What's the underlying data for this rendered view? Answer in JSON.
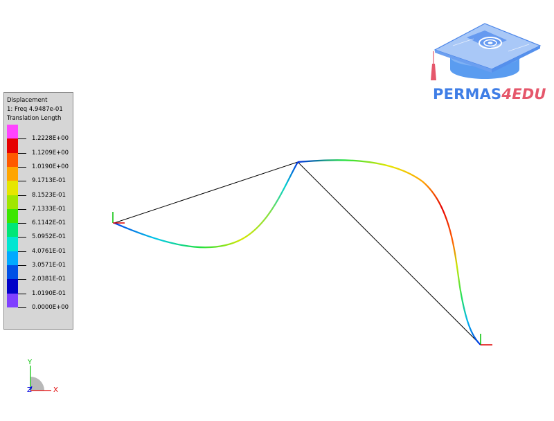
{
  "legend": {
    "title": "Displacement",
    "subtitle": "1: Freq 4.9487e-01",
    "quantity": "Translation Length",
    "ticks": [
      "1.2228E+00",
      "1.1209E+00",
      "1.0190E+00",
      "9.1713E-01",
      "8.1523E-01",
      "7.1333E-01",
      "6.1142E-01",
      "5.0952E-01",
      "4.0761E-01",
      "3.0571E-01",
      "2.0381E-01",
      "1.0190E-01",
      "0.0000E+00"
    ],
    "colors": [
      "#ff44ff",
      "#e60000",
      "#ff5a00",
      "#ffa500",
      "#e6e600",
      "#a0e600",
      "#3ce600",
      "#00e678",
      "#00e6d2",
      "#00aaff",
      "#0050e6",
      "#0000c8",
      "#8040ff"
    ]
  },
  "logo": {
    "brand": "PERMAS",
    "suffix": "4EDU",
    "brand_color": "#3f7ee6",
    "suffix_color": "#e5576b"
  },
  "triad": {
    "x_label": "X",
    "y_label": "Y",
    "z_label": "Z"
  }
}
